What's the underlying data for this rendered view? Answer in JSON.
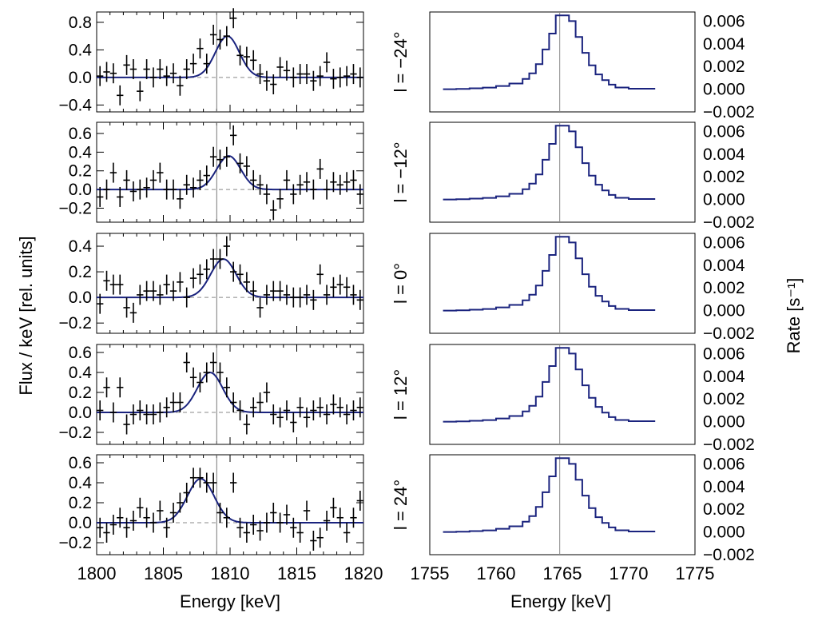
{
  "chart_data": [
    {
      "type": "scatter",
      "xlabel": "Energy [keV]",
      "ylabel": "Flux / keV [rel. units]",
      "xlim": [
        1800,
        1820
      ],
      "x_ticks": [
        "1800",
        "1805",
        "1810",
        "1815",
        "1820"
      ],
      "reference_line_x": 1809,
      "line_color": "#1a237e",
      "panels": [
        {
          "ylim": [
            -0.5,
            0.95
          ],
          "y_ticks": [
            "0.8",
            "0.4",
            "0.0",
            "−0.4"
          ],
          "y_tick_values": [
            0.8,
            0.4,
            0.0,
            -0.4
          ],
          "gauss": {
            "amp": 0.6,
            "center": 1809.8,
            "sigma": 0.9
          },
          "points": [
            [
              1800.25,
              0.02
            ],
            [
              1800.75,
              0.08
            ],
            [
              1801.25,
              0.06
            ],
            [
              1801.75,
              -0.26
            ],
            [
              1802.25,
              0.18
            ],
            [
              1802.75,
              0.12
            ],
            [
              1803.25,
              -0.2
            ],
            [
              1803.75,
              0.12
            ],
            [
              1804.25,
              0.0
            ],
            [
              1804.75,
              0.12
            ],
            [
              1805.25,
              0.02
            ],
            [
              1805.75,
              0.06
            ],
            [
              1806.25,
              -0.12
            ],
            [
              1806.75,
              0.12
            ],
            [
              1807.25,
              0.2
            ],
            [
              1807.75,
              0.42
            ],
            [
              1808.25,
              0.2
            ],
            [
              1808.75,
              0.62
            ],
            [
              1809.25,
              0.55
            ],
            [
              1809.75,
              0.6
            ],
            [
              1810.25,
              0.86
            ],
            [
              1810.75,
              0.32
            ],
            [
              1811.25,
              0.3
            ],
            [
              1811.75,
              0.25
            ],
            [
              1812.25,
              0.05
            ],
            [
              1812.75,
              -0.05
            ],
            [
              1813.25,
              -0.1
            ],
            [
              1813.75,
              0.15
            ],
            [
              1814.25,
              0.1
            ],
            [
              1814.75,
              0.0
            ],
            [
              1815.25,
              0.05
            ],
            [
              1815.75,
              0.05
            ],
            [
              1816.25,
              -0.05
            ],
            [
              1816.75,
              0.02
            ],
            [
              1817.25,
              0.22
            ],
            [
              1817.75,
              -0.02
            ],
            [
              1818.25,
              0.0
            ],
            [
              1818.75,
              0.02
            ],
            [
              1819.25,
              0.05
            ],
            [
              1819.75,
              0.0
            ]
          ]
        },
        {
          "ylim": [
            -0.35,
            0.72
          ],
          "y_ticks": [
            "0.6",
            "0.4",
            "0.2",
            "0.0",
            "−0.2"
          ],
          "y_tick_values": [
            0.6,
            0.4,
            0.2,
            0.0,
            -0.2
          ],
          "gauss": {
            "amp": 0.36,
            "center": 1809.9,
            "sigma": 0.9
          },
          "points": [
            [
              1800.25,
              -0.08
            ],
            [
              1800.75,
              0.0
            ],
            [
              1801.25,
              0.18
            ],
            [
              1801.75,
              -0.08
            ],
            [
              1802.25,
              0.1
            ],
            [
              1802.75,
              -0.02
            ],
            [
              1803.25,
              0.0
            ],
            [
              1803.75,
              0.02
            ],
            [
              1804.25,
              0.1
            ],
            [
              1804.75,
              0.18
            ],
            [
              1805.25,
              0.0
            ],
            [
              1805.75,
              0.0
            ],
            [
              1806.25,
              -0.1
            ],
            [
              1806.75,
              0.05
            ],
            [
              1807.25,
              0.02
            ],
            [
              1807.75,
              0.1
            ],
            [
              1808.25,
              0.15
            ],
            [
              1808.75,
              0.35
            ],
            [
              1809.25,
              0.32
            ],
            [
              1809.75,
              0.35
            ],
            [
              1810.25,
              0.58
            ],
            [
              1810.75,
              0.28
            ],
            [
              1811.25,
              0.25
            ],
            [
              1811.75,
              0.1
            ],
            [
              1812.25,
              0.05
            ],
            [
              1812.75,
              -0.05
            ],
            [
              1813.25,
              -0.22
            ],
            [
              1813.75,
              -0.1
            ],
            [
              1814.25,
              0.1
            ],
            [
              1814.75,
              -0.05
            ],
            [
              1815.25,
              0.05
            ],
            [
              1815.75,
              0.08
            ],
            [
              1816.25,
              0.0
            ],
            [
              1816.75,
              0.22
            ],
            [
              1817.25,
              0.0
            ],
            [
              1817.75,
              0.08
            ],
            [
              1818.25,
              0.05
            ],
            [
              1818.75,
              0.08
            ],
            [
              1819.25,
              0.1
            ],
            [
              1819.75,
              -0.05
            ]
          ]
        },
        {
          "ylim": [
            -0.28,
            0.5
          ],
          "y_ticks": [
            "0.4",
            "0.2",
            "0.0",
            "−0.2"
          ],
          "y_tick_values": [
            0.4,
            0.2,
            0.0,
            -0.2
          ],
          "gauss": {
            "amp": 0.3,
            "center": 1809.5,
            "sigma": 0.95
          },
          "points": [
            [
              1800.25,
              -0.05
            ],
            [
              1800.75,
              0.13
            ],
            [
              1801.25,
              0.1
            ],
            [
              1801.75,
              0.1
            ],
            [
              1802.25,
              -0.08
            ],
            [
              1802.75,
              -0.12
            ],
            [
              1803.25,
              0.02
            ],
            [
              1803.75,
              0.05
            ],
            [
              1804.25,
              0.05
            ],
            [
              1804.75,
              0.02
            ],
            [
              1805.25,
              0.1
            ],
            [
              1805.75,
              0.05
            ],
            [
              1806.25,
              0.12
            ],
            [
              1806.75,
              0.0
            ],
            [
              1807.25,
              0.15
            ],
            [
              1807.75,
              0.18
            ],
            [
              1808.25,
              0.22
            ],
            [
              1808.75,
              0.3
            ],
            [
              1809.25,
              0.3
            ],
            [
              1809.75,
              0.4
            ],
            [
              1810.25,
              0.2
            ],
            [
              1810.75,
              0.18
            ],
            [
              1811.25,
              0.12
            ],
            [
              1811.75,
              0.05
            ],
            [
              1812.25,
              -0.08
            ],
            [
              1812.75,
              0.02
            ],
            [
              1813.25,
              0.05
            ],
            [
              1813.75,
              0.05
            ],
            [
              1814.25,
              0.02
            ],
            [
              1814.75,
              0.0
            ],
            [
              1815.25,
              0.0
            ],
            [
              1815.75,
              0.02
            ],
            [
              1816.25,
              -0.02
            ],
            [
              1816.75,
              0.18
            ],
            [
              1817.25,
              0.02
            ],
            [
              1817.75,
              0.08
            ],
            [
              1818.25,
              0.1
            ],
            [
              1818.75,
              0.08
            ],
            [
              1819.25,
              0.02
            ],
            [
              1819.75,
              -0.02
            ]
          ]
        },
        {
          "ylim": [
            -0.32,
            0.68
          ],
          "y_ticks": [
            "0.6",
            "0.4",
            "0.2",
            "0.0",
            "−0.2"
          ],
          "y_tick_values": [
            0.6,
            0.4,
            0.2,
            0.0,
            -0.2
          ],
          "gauss": {
            "amp": 0.4,
            "center": 1808.5,
            "sigma": 0.95
          },
          "points": [
            [
              1800.25,
              0.02
            ],
            [
              1800.75,
              0.25
            ],
            [
              1801.25,
              0.0
            ],
            [
              1801.75,
              0.25
            ],
            [
              1802.25,
              -0.12
            ],
            [
              1802.75,
              -0.02
            ],
            [
              1803.25,
              0.02
            ],
            [
              1803.75,
              -0.02
            ],
            [
              1804.25,
              -0.02
            ],
            [
              1804.75,
              0.0
            ],
            [
              1805.25,
              0.05
            ],
            [
              1805.75,
              0.1
            ],
            [
              1806.25,
              0.1
            ],
            [
              1806.75,
              0.5
            ],
            [
              1807.25,
              0.35
            ],
            [
              1807.75,
              0.3
            ],
            [
              1808.25,
              0.4
            ],
            [
              1808.75,
              0.5
            ],
            [
              1809.25,
              0.4
            ],
            [
              1809.75,
              0.25
            ],
            [
              1810.25,
              0.1
            ],
            [
              1810.75,
              0.02
            ],
            [
              1811.25,
              -0.12
            ],
            [
              1811.75,
              0.05
            ],
            [
              1812.25,
              0.1
            ],
            [
              1812.75,
              0.2
            ],
            [
              1813.25,
              -0.02
            ],
            [
              1813.75,
              -0.05
            ],
            [
              1814.25,
              0.02
            ],
            [
              1814.75,
              -0.1
            ],
            [
              1815.25,
              0.05
            ],
            [
              1815.75,
              -0.05
            ],
            [
              1816.25,
              0.02
            ],
            [
              1816.75,
              0.05
            ],
            [
              1817.25,
              -0.02
            ],
            [
              1817.75,
              0.08
            ],
            [
              1818.25,
              0.05
            ],
            [
              1818.75,
              -0.02
            ],
            [
              1819.25,
              0.02
            ],
            [
              1819.75,
              0.05
            ]
          ]
        },
        {
          "ylim": [
            -0.32,
            0.68
          ],
          "y_ticks": [
            "0.6",
            "0.4",
            "0.2",
            "0.0",
            "−0.2"
          ],
          "y_tick_values": [
            0.6,
            0.4,
            0.2,
            0.0,
            -0.2
          ],
          "gauss": {
            "amp": 0.44,
            "center": 1807.8,
            "sigma": 1.0
          },
          "points": [
            [
              1800.25,
              -0.05
            ],
            [
              1800.75,
              -0.1
            ],
            [
              1801.25,
              -0.02
            ],
            [
              1801.75,
              0.05
            ],
            [
              1802.25,
              -0.05
            ],
            [
              1802.75,
              0.02
            ],
            [
              1803.25,
              0.15
            ],
            [
              1803.75,
              0.05
            ],
            [
              1804.25,
              0.0
            ],
            [
              1804.75,
              0.12
            ],
            [
              1805.25,
              -0.05
            ],
            [
              1805.75,
              0.1
            ],
            [
              1806.25,
              0.2
            ],
            [
              1806.75,
              0.3
            ],
            [
              1807.25,
              0.45
            ],
            [
              1807.75,
              0.45
            ],
            [
              1808.25,
              0.4
            ],
            [
              1808.75,
              0.4
            ],
            [
              1809.25,
              0.1
            ],
            [
              1809.75,
              0.05
            ],
            [
              1810.25,
              0.4
            ],
            [
              1810.75,
              -0.05
            ],
            [
              1811.25,
              -0.1
            ],
            [
              1811.75,
              -0.02
            ],
            [
              1812.25,
              -0.08
            ],
            [
              1812.75,
              0.0
            ],
            [
              1813.25,
              0.1
            ],
            [
              1813.75,
              0.0
            ],
            [
              1814.25,
              0.08
            ],
            [
              1814.75,
              -0.05
            ],
            [
              1815.25,
              -0.1
            ],
            [
              1815.75,
              0.12
            ],
            [
              1816.25,
              -0.18
            ],
            [
              1816.75,
              -0.15
            ],
            [
              1817.25,
              0.02
            ],
            [
              1817.75,
              0.15
            ],
            [
              1818.25,
              0.05
            ],
            [
              1818.75,
              -0.1
            ],
            [
              1819.25,
              0.05
            ],
            [
              1819.75,
              0.22
            ]
          ]
        }
      ]
    },
    {
      "type": "line",
      "xlabel": "Energy [keV]",
      "ylabel": "Rate [s⁻¹]",
      "xlim": [
        1755,
        1775
      ],
      "x_ticks": [
        "1755",
        "1760",
        "1765",
        "1770",
        "1775"
      ],
      "ylim": [
        -0.002,
        0.0068
      ],
      "y_ticks": [
        "0.006",
        "0.004",
        "0.002",
        "0.000",
        "−0.002"
      ],
      "y_tick_values": [
        0.006,
        0.004,
        0.002,
        0.0,
        -0.002
      ],
      "reference_line_x": 1764.8,
      "line_color": "#1a237e",
      "bin_edges": [
        1756,
        1757,
        1758,
        1759,
        1760,
        1761,
        1762,
        1762.5,
        1763,
        1763.5,
        1764,
        1764.5,
        1765.5,
        1766,
        1766.5,
        1767,
        1767.5,
        1768,
        1768.5,
        1769,
        1770,
        1772
      ],
      "bin_values": [
        0,
        3e-05,
        8e-05,
        0.00014,
        0.00028,
        0.0005,
        0.0009,
        0.0014,
        0.0022,
        0.0035,
        0.0049,
        0.0065,
        0.006,
        0.0046,
        0.0032,
        0.0021,
        0.0013,
        0.0008,
        0.0004,
        0.00015,
        4e-05
      ],
      "panel_labels": [
        "l = −24°",
        "l = −12°",
        "l = 0°",
        "l = 12°",
        "l = 24°"
      ]
    }
  ]
}
